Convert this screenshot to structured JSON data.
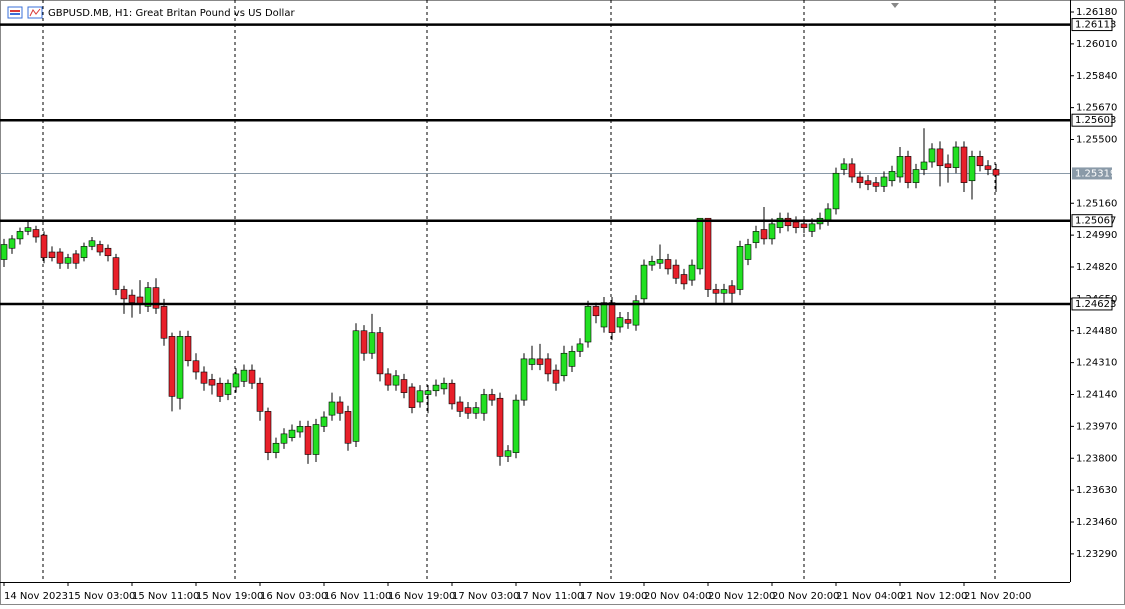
{
  "chart_data": {
    "type": "candlestick",
    "title": "GBPUSD.MB, H1:  Great Britan Pound vs US Dollar",
    "up_color": "#22e022",
    "down_color": "#e8202a",
    "ylim": [
      1.2314,
      1.26244
    ],
    "yticks": [
      {
        "value": 1.2618,
        "label": "1.26180"
      },
      {
        "value": 1.2601,
        "label": "1.26010"
      },
      {
        "value": 1.2584,
        "label": "1.25840"
      },
      {
        "value": 1.2567,
        "label": "1.25670"
      },
      {
        "value": 1.255,
        "label": "1.25500"
      },
      {
        "value": 1.2516,
        "label": "1.25160"
      },
      {
        "value": 1.2499,
        "label": "1.24990"
      },
      {
        "value": 1.2482,
        "label": "1.24820"
      },
      {
        "value": 1.2465,
        "label": "1.24650"
      },
      {
        "value": 1.2448,
        "label": "1.24480"
      },
      {
        "value": 1.2431,
        "label": "1.24310"
      },
      {
        "value": 1.2414,
        "label": "1.24140"
      },
      {
        "value": 1.2397,
        "label": "1.23970"
      },
      {
        "value": 1.238,
        "label": "1.23800"
      },
      {
        "value": 1.2363,
        "label": "1.23630"
      },
      {
        "value": 1.2346,
        "label": "1.23460"
      },
      {
        "value": 1.2329,
        "label": "1.23290"
      }
    ],
    "levels": [
      1.26113,
      1.25603,
      1.25067,
      1.24623
    ],
    "price_line": 1.25319,
    "categories": [
      "14 Nov 2023",
      null,
      null,
      null,
      null,
      null,
      null,
      null,
      "15 Nov 03:00",
      null,
      null,
      null,
      null,
      null,
      null,
      null,
      "15 Nov 11:00",
      null,
      null,
      null,
      null,
      null,
      null,
      null,
      "15 Nov 19:00",
      null,
      null,
      null,
      null,
      null,
      null,
      null,
      "16 Nov 03:00",
      null,
      null,
      null,
      null,
      null,
      null,
      null,
      "16 Nov 11:00",
      null,
      null,
      null,
      null,
      null,
      null,
      null,
      "16 Nov 19:00",
      null,
      null,
      null,
      null,
      null,
      null,
      null,
      "17 Nov 03:00",
      null,
      null,
      null,
      null,
      null,
      null,
      null,
      "17 Nov 11:00",
      null,
      null,
      null,
      null,
      null,
      null,
      null,
      "17 Nov 19:00",
      null,
      null,
      null,
      null,
      null,
      null,
      null,
      "20 Nov 04:00",
      null,
      null,
      null,
      null,
      null,
      null,
      null,
      "20 Nov 12:00",
      null,
      null,
      null,
      null,
      null,
      null,
      null,
      "20 Nov 20:00",
      null,
      null,
      null,
      null,
      null,
      null,
      null,
      "21 Nov 04:00",
      null,
      null,
      null,
      null,
      null,
      null,
      null,
      "21 Nov 12:00",
      null,
      null,
      null,
      null,
      null,
      null,
      null,
      "21 Nov 20:00",
      null,
      null,
      null,
      null
    ],
    "ohlc": [
      [
        1.2486,
        1.2497,
        1.2482,
        1.2494
      ],
      [
        1.2492,
        1.2499,
        1.2489,
        1.2497
      ],
      [
        1.2497,
        1.2503,
        1.2494,
        1.2501
      ],
      [
        1.2501,
        1.2506,
        1.2499,
        1.2503
      ],
      [
        1.2502,
        1.2504,
        1.2495,
        1.2498
      ],
      [
        1.2499,
        1.2501,
        1.2484,
        1.2487
      ],
      [
        1.249,
        1.2493,
        1.2485,
        1.2487
      ],
      [
        1.249,
        1.2492,
        1.2481,
        1.2484
      ],
      [
        1.2484,
        1.2489,
        1.2481,
        1.2487
      ],
      [
        1.2489,
        1.2491,
        1.2481,
        1.2484
      ],
      [
        1.2487,
        1.2495,
        1.2485,
        1.2493
      ],
      [
        1.2493,
        1.2498,
        1.2491,
        1.2496
      ],
      [
        1.2494,
        1.2496,
        1.2488,
        1.249
      ],
      [
        1.2492,
        1.2494,
        1.2485,
        1.2488
      ],
      [
        1.2487,
        1.2489,
        1.2467,
        1.247
      ],
      [
        1.247,
        1.2472,
        1.2457,
        1.2465
      ],
      [
        1.2467,
        1.247,
        1.2455,
        1.2463
      ],
      [
        1.2466,
        1.2475,
        1.2457,
        1.2462
      ],
      [
        1.2461,
        1.2474,
        1.2458,
        1.2471
      ],
      [
        1.2471,
        1.2476,
        1.2457,
        1.246
      ],
      [
        1.2461,
        1.2465,
        1.244,
        1.2444
      ],
      [
        1.2445,
        1.2447,
        1.2405,
        1.2413
      ],
      [
        1.2412,
        1.2448,
        1.2406,
        1.2445
      ],
      [
        1.2445,
        1.2448,
        1.2429,
        1.2432
      ],
      [
        1.2432,
        1.2436,
        1.2422,
        1.2426
      ],
      [
        1.2426,
        1.2429,
        1.2416,
        1.242
      ],
      [
        1.2422,
        1.2425,
        1.2414,
        1.2419
      ],
      [
        1.242,
        1.2423,
        1.241,
        1.2413
      ],
      [
        1.2414,
        1.2422,
        1.2411,
        1.242
      ],
      [
        1.2418,
        1.2428,
        1.2415,
        1.2425
      ],
      [
        1.2421,
        1.243,
        1.2418,
        1.2427
      ],
      [
        1.2427,
        1.243,
        1.2417,
        1.242
      ],
      [
        1.242,
        1.2423,
        1.24,
        1.2405
      ],
      [
        1.2405,
        1.2407,
        1.2379,
        1.2383
      ],
      [
        1.2383,
        1.2391,
        1.238,
        1.2388
      ],
      [
        1.2388,
        1.2396,
        1.2385,
        1.2393
      ],
      [
        1.2391,
        1.2398,
        1.2389,
        1.2395
      ],
      [
        1.2394,
        1.24,
        1.2391,
        1.2397
      ],
      [
        1.2397,
        1.24,
        1.2377,
        1.2382
      ],
      [
        1.2382,
        1.2401,
        1.2378,
        1.2398
      ],
      [
        1.2397,
        1.2405,
        1.2394,
        1.2402
      ],
      [
        1.2403,
        1.2415,
        1.24,
        1.241
      ],
      [
        1.241,
        1.2413,
        1.24,
        1.2404
      ],
      [
        1.2405,
        1.2408,
        1.2384,
        1.2388
      ],
      [
        1.2389,
        1.2452,
        1.2386,
        1.2448
      ],
      [
        1.2448,
        1.2451,
        1.2432,
        1.2436
      ],
      [
        1.2436,
        1.2457,
        1.2433,
        1.2447
      ],
      [
        1.2447,
        1.245,
        1.2421,
        1.2425
      ],
      [
        1.2425,
        1.2428,
        1.2416,
        1.2419
      ],
      [
        1.2419,
        1.2427,
        1.2416,
        1.2424
      ],
      [
        1.2422,
        1.2425,
        1.2412,
        1.2415
      ],
      [
        1.2418,
        1.242,
        1.2404,
        1.2407
      ],
      [
        1.241,
        1.2419,
        1.2407,
        1.2416
      ],
      [
        1.2414,
        1.2419,
        1.2404,
        1.2416
      ],
      [
        1.2416,
        1.2422,
        1.2413,
        1.2419
      ],
      [
        1.2417,
        1.2423,
        1.2414,
        1.242
      ],
      [
        1.242,
        1.2422,
        1.2406,
        1.2409
      ],
      [
        1.241,
        1.2413,
        1.2402,
        1.2405
      ],
      [
        1.2407,
        1.241,
        1.2401,
        1.2404
      ],
      [
        1.2404,
        1.241,
        1.2401,
        1.2407
      ],
      [
        1.2404,
        1.2417,
        1.24,
        1.2414
      ],
      [
        1.2414,
        1.2417,
        1.2408,
        1.2411
      ],
      [
        1.2412,
        1.2415,
        1.2376,
        1.2381
      ],
      [
        1.2381,
        1.2387,
        1.2378,
        1.2384
      ],
      [
        1.2383,
        1.2414,
        1.238,
        1.2411
      ],
      [
        1.2411,
        1.2436,
        1.2408,
        1.2433
      ],
      [
        1.243,
        1.244,
        1.2427,
        1.2433
      ],
      [
        1.2433,
        1.2441,
        1.2427,
        1.243
      ],
      [
        1.2433,
        1.2436,
        1.2421,
        1.2425
      ],
      [
        1.2427,
        1.243,
        1.2416,
        1.242
      ],
      [
        1.2424,
        1.244,
        1.2421,
        1.2436
      ],
      [
        1.2429,
        1.244,
        1.2426,
        1.2437
      ],
      [
        1.2437,
        1.2444,
        1.2434,
        1.2441
      ],
      [
        1.2442,
        1.2464,
        1.2439,
        1.2461
      ],
      [
        1.2461,
        1.2463,
        1.2452,
        1.2456
      ],
      [
        1.245,
        1.2466,
        1.2447,
        1.2463
      ],
      [
        1.2463,
        1.2466,
        1.2443,
        1.2447
      ],
      [
        1.245,
        1.2458,
        1.2447,
        1.2455
      ],
      [
        1.2454,
        1.2458,
        1.2449,
        1.2452
      ],
      [
        1.2451,
        1.2467,
        1.2448,
        1.2464
      ],
      [
        1.2465,
        1.2486,
        1.2462,
        1.2483
      ],
      [
        1.2483,
        1.2488,
        1.248,
        1.2485
      ],
      [
        1.2484,
        1.2494,
        1.2481,
        1.2486
      ],
      [
        1.2486,
        1.2489,
        1.2478,
        1.2481
      ],
      [
        1.2483,
        1.2486,
        1.2473,
        1.2476
      ],
      [
        1.2478,
        1.2481,
        1.247,
        1.2473
      ],
      [
        1.2475,
        1.2486,
        1.2472,
        1.2483
      ],
      [
        1.2481,
        1.2508,
        1.2478,
        1.2508
      ],
      [
        1.2508,
        1.2508,
        1.2466,
        1.247
      ],
      [
        1.247,
        1.2473,
        1.2462,
        1.2468
      ],
      [
        1.2468,
        1.2473,
        1.2463,
        1.247
      ],
      [
        1.2472,
        1.2475,
        1.2462,
        1.2468
      ],
      [
        1.247,
        1.2496,
        1.2467,
        1.2493
      ],
      [
        1.2486,
        1.2497,
        1.2483,
        1.2494
      ],
      [
        1.2495,
        1.2504,
        1.2492,
        1.2501
      ],
      [
        1.2502,
        1.2514,
        1.2494,
        1.2497
      ],
      [
        1.2497,
        1.2508,
        1.2494,
        1.2505
      ],
      [
        1.2503,
        1.2511,
        1.25,
        1.2508
      ],
      [
        1.2508,
        1.2511,
        1.2501,
        1.2504
      ],
      [
        1.2506,
        1.2509,
        1.25,
        1.2503
      ],
      [
        1.2505,
        1.2508,
        1.25,
        1.2503
      ],
      [
        1.2501,
        1.2508,
        1.2498,
        1.2505
      ],
      [
        1.2505,
        1.2511,
        1.2502,
        1.2508
      ],
      [
        1.2507,
        1.2516,
        1.2504,
        1.2513
      ],
      [
        1.2513,
        1.2535,
        1.251,
        1.2532
      ],
      [
        1.2534,
        1.254,
        1.2531,
        1.2537
      ],
      [
        1.2537,
        1.254,
        1.2527,
        1.253
      ],
      [
        1.253,
        1.2533,
        1.2524,
        1.2527
      ],
      [
        1.2528,
        1.2531,
        1.2523,
        1.2526
      ],
      [
        1.2527,
        1.253,
        1.2522,
        1.2525
      ],
      [
        1.2525,
        1.2533,
        1.2522,
        1.253
      ],
      [
        1.2528,
        1.2536,
        1.2525,
        1.2533
      ],
      [
        1.253,
        1.2546,
        1.2527,
        1.2541
      ],
      [
        1.2541,
        1.2544,
        1.2524,
        1.2527
      ],
      [
        1.2527,
        1.2537,
        1.2524,
        1.2534
      ],
      [
        1.2534,
        1.2556,
        1.2531,
        1.2538
      ],
      [
        1.2538,
        1.2548,
        1.2535,
        1.2545
      ],
      [
        1.2545,
        1.2549,
        1.2525,
        1.2536
      ],
      [
        1.2537,
        1.2542,
        1.2527,
        1.2535
      ],
      [
        1.2535,
        1.2549,
        1.2532,
        1.2546
      ],
      [
        1.2546,
        1.2549,
        1.2522,
        1.2527
      ],
      [
        1.2528,
        1.2544,
        1.2518,
        1.2541
      ],
      [
        1.2541,
        1.2544,
        1.2533,
        1.2536
      ],
      [
        1.2536,
        1.2539,
        1.2531,
        1.2534
      ],
      [
        1.2534,
        1.2537,
        1.2522,
        1.2531
      ]
    ]
  }
}
